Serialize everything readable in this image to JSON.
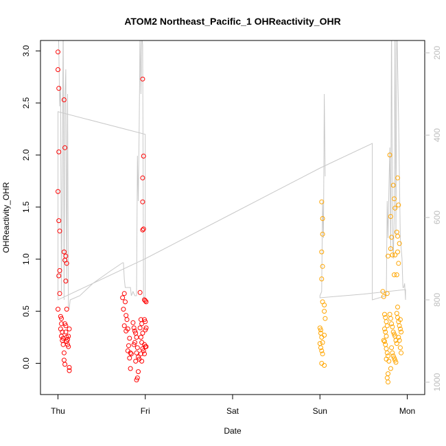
{
  "chart_data": {
    "type": "scatter",
    "title": "ATOM2 Northeast_Pacific_1 OHReactivity_OHR",
    "xlabel": "Date",
    "ylabel": "OHReactivity_OHR",
    "x_ticks": [
      "Thu",
      "Fri",
      "Sat",
      "Sun",
      "Mon"
    ],
    "xlim_days": [
      -0.2,
      4.2
    ],
    "ylim": [
      -0.3,
      3.1
    ],
    "y_ticks": [
      0.0,
      0.5,
      1.0,
      1.5,
      2.0,
      2.5,
      3.0
    ],
    "y_tick_labels": [
      "0.0",
      "0.5",
      "1.0",
      "1.5",
      "2.0",
      "2.5",
      "3.0"
    ],
    "right_axis": {
      "ylim": [
        1030,
        170
      ],
      "ticks": [
        200,
        400,
        600,
        800,
        1000
      ],
      "tick_labels": [
        "200",
        "400",
        "600",
        "800",
        "1000"
      ],
      "reversed": true,
      "color": "#bdbdbd"
    },
    "grid": false,
    "series": [
      {
        "color": "#ff0000",
        "marker": "open-circle",
        "points": [
          [
            0.0,
            2.99
          ],
          [
            0.0,
            2.82
          ],
          [
            0.01,
            2.64
          ],
          [
            0.01,
            2.03
          ],
          [
            0.0,
            1.65
          ],
          [
            0.01,
            1.37
          ],
          [
            0.02,
            1.27
          ],
          [
            0.02,
            0.89
          ],
          [
            0.01,
            0.84
          ],
          [
            0.02,
            0.67
          ],
          [
            0.0,
            0.52
          ],
          [
            0.07,
            2.53
          ],
          [
            0.08,
            2.07
          ],
          [
            0.07,
            1.07
          ],
          [
            0.09,
            1.03
          ],
          [
            0.08,
            0.99
          ],
          [
            0.1,
            0.96
          ],
          [
            0.09,
            0.79
          ],
          [
            0.1,
            0.52
          ],
          [
            0.03,
            0.45
          ],
          [
            0.04,
            0.43
          ],
          [
            0.04,
            0.38
          ],
          [
            0.03,
            0.33
          ],
          [
            0.05,
            0.3
          ],
          [
            0.04,
            0.26
          ],
          [
            0.06,
            0.24
          ],
          [
            0.05,
            0.22
          ],
          [
            0.06,
            0.18
          ],
          [
            0.07,
            0.1
          ],
          [
            0.07,
            0.03
          ],
          [
            0.08,
            -0.01
          ],
          [
            0.08,
            0.38
          ],
          [
            0.09,
            0.36
          ],
          [
            0.09,
            0.3
          ],
          [
            0.1,
            0.25
          ],
          [
            0.11,
            0.23
          ],
          [
            0.11,
            0.18
          ],
          [
            0.12,
            0.16
          ],
          [
            0.13,
            -0.04
          ],
          [
            0.13,
            -0.07
          ],
          [
            0.1,
            0.21
          ],
          [
            0.12,
            0.26
          ],
          [
            0.13,
            0.33
          ],
          [
            0.74,
            0.63
          ],
          [
            0.76,
            0.67
          ],
          [
            0.77,
            0.59
          ],
          [
            0.75,
            0.52
          ],
          [
            0.78,
            0.46
          ],
          [
            0.79,
            0.42
          ],
          [
            0.76,
            0.36
          ],
          [
            0.8,
            0.33
          ],
          [
            0.78,
            0.31
          ],
          [
            0.82,
            0.24
          ],
          [
            0.81,
            0.17
          ],
          [
            0.8,
            0.12
          ],
          [
            0.83,
            0.1
          ],
          [
            0.84,
            0.09
          ],
          [
            0.82,
            0.05
          ],
          [
            0.83,
            -0.05
          ],
          [
            0.86,
            0.39
          ],
          [
            0.87,
            0.34
          ],
          [
            0.88,
            0.31
          ],
          [
            0.89,
            0.29
          ],
          [
            0.9,
            0.25
          ],
          [
            0.88,
            0.2
          ],
          [
            0.87,
            0.18
          ],
          [
            0.91,
            0.15
          ],
          [
            0.9,
            0.1
          ],
          [
            0.92,
            0.06
          ],
          [
            0.93,
            0.04
          ],
          [
            0.89,
            0.02
          ],
          [
            0.92,
            -0.08
          ],
          [
            0.91,
            -0.14
          ],
          [
            0.9,
            -0.16
          ],
          [
            0.94,
            0.68
          ],
          [
            0.95,
            0.42
          ],
          [
            0.96,
            0.38
          ],
          [
            0.94,
            0.34
          ],
          [
            0.97,
            0.29
          ],
          [
            0.95,
            0.25
          ],
          [
            0.96,
            0.2
          ],
          [
            0.97,
            0.14
          ],
          [
            0.95,
            0.09
          ],
          [
            0.96,
            0.02
          ],
          [
            0.97,
            2.73
          ],
          [
            0.98,
            1.99
          ],
          [
            0.97,
            1.78
          ],
          [
            0.97,
            1.55
          ],
          [
            0.97,
            1.28
          ],
          [
            0.98,
            1.29
          ],
          [
            0.99,
            0.61
          ],
          [
            1.0,
            0.6
          ],
          [
            1.01,
            0.59
          ],
          [
            0.99,
            0.42
          ],
          [
            1.0,
            0.4
          ],
          [
            1.01,
            0.34
          ],
          [
            1.0,
            0.32
          ],
          [
            0.99,
            0.18
          ],
          [
            1.0,
            0.16
          ],
          [
            1.01,
            0.16
          ],
          [
            0.98,
            0.12
          ],
          [
            0.99,
            0.09
          ]
        ]
      },
      {
        "color": "#ffa500",
        "marker": "open-circle",
        "points": [
          [
            3.02,
            1.55
          ],
          [
            3.03,
            1.39
          ],
          [
            3.03,
            1.24
          ],
          [
            3.02,
            1.07
          ],
          [
            3.03,
            0.93
          ],
          [
            3.02,
            0.81
          ],
          [
            3.03,
            0.59
          ],
          [
            3.05,
            0.56
          ],
          [
            3.05,
            0.5
          ],
          [
            3.06,
            0.43
          ],
          [
            3.0,
            0.34
          ],
          [
            3.01,
            0.32
          ],
          [
            3.01,
            0.29
          ],
          [
            3.02,
            0.25
          ],
          [
            3.03,
            0.2
          ],
          [
            3.0,
            0.19
          ],
          [
            3.01,
            0.15
          ],
          [
            3.02,
            0.12
          ],
          [
            3.03,
            0.09
          ],
          [
            3.02,
            0.0
          ],
          [
            3.05,
            -0.02
          ],
          [
            3.05,
            0.27
          ],
          [
            3.72,
            0.69
          ],
          [
            3.73,
            0.64
          ],
          [
            3.77,
            0.67
          ],
          [
            3.74,
            0.47
          ],
          [
            3.75,
            0.44
          ],
          [
            3.76,
            0.4
          ],
          [
            3.77,
            0.36
          ],
          [
            3.74,
            0.33
          ],
          [
            3.75,
            0.3
          ],
          [
            3.76,
            0.26
          ],
          [
            3.73,
            0.22
          ],
          [
            3.74,
            0.21
          ],
          [
            3.75,
            0.18
          ],
          [
            3.76,
            0.14
          ],
          [
            3.77,
            0.1
          ],
          [
            3.78,
            0.07
          ],
          [
            3.76,
            0.04
          ],
          [
            3.79,
            0.02
          ],
          [
            3.78,
            -0.1
          ],
          [
            3.77,
            -0.14
          ],
          [
            3.78,
            -0.18
          ],
          [
            3.8,
            2.0
          ],
          [
            3.81,
            1.41
          ],
          [
            3.82,
            1.21
          ],
          [
            3.81,
            1.1
          ],
          [
            3.83,
            1.04
          ],
          [
            3.78,
            1.03
          ],
          [
            3.86,
            1.04
          ],
          [
            3.85,
            0.85
          ],
          [
            3.84,
            1.71
          ],
          [
            3.85,
            1.58
          ],
          [
            3.86,
            1.49
          ],
          [
            3.8,
            0.47
          ],
          [
            3.81,
            0.43
          ],
          [
            3.82,
            0.38
          ],
          [
            3.83,
            0.35
          ],
          [
            3.84,
            0.3
          ],
          [
            3.85,
            0.28
          ],
          [
            3.86,
            0.26
          ],
          [
            3.87,
            0.22
          ],
          [
            3.88,
            0.19
          ],
          [
            3.82,
            0.15
          ],
          [
            3.83,
            0.1
          ],
          [
            3.84,
            0.07
          ],
          [
            3.85,
            0.05
          ],
          [
            3.86,
            0.03
          ],
          [
            3.87,
            0.01
          ],
          [
            3.81,
            -0.05
          ],
          [
            3.89,
            1.78
          ],
          [
            3.9,
            1.52
          ],
          [
            3.88,
            1.26
          ],
          [
            3.89,
            1.22
          ],
          [
            3.91,
            1.15
          ],
          [
            3.89,
            1.07
          ],
          [
            3.9,
            0.96
          ],
          [
            3.88,
            0.85
          ],
          [
            3.88,
            0.48
          ],
          [
            3.89,
            0.44
          ],
          [
            3.9,
            0.4
          ],
          [
            3.91,
            0.36
          ],
          [
            3.92,
            0.33
          ],
          [
            3.93,
            0.3
          ],
          [
            3.9,
            0.25
          ],
          [
            3.91,
            0.22
          ],
          [
            3.92,
            0.15
          ],
          [
            3.93,
            0.1
          ],
          [
            3.89,
            0.54
          ],
          [
            3.92,
            0.42
          ]
        ]
      }
    ],
    "altitude_line": {
      "color": "#c8c8c8",
      "points": [
        [
          0.0,
          110
        ],
        [
          0.01,
          190
        ],
        [
          0.02,
          330
        ],
        [
          0.03,
          280
        ],
        [
          0.04,
          780
        ],
        [
          0.05,
          500
        ],
        [
          0.06,
          120
        ],
        [
          0.07,
          800
        ],
        [
          0.08,
          310
        ],
        [
          0.09,
          240
        ],
        [
          0.1,
          760
        ],
        [
          0.11,
          300
        ],
        [
          0.12,
          820
        ],
        [
          0.13,
          820
        ],
        [
          0.14,
          800
        ],
        [
          0.25,
          790
        ],
        [
          0.4,
          760
        ],
        [
          0.6,
          730
        ],
        [
          0.74,
          710
        ],
        [
          0.75,
          710
        ],
        [
          0.76,
          750
        ],
        [
          0.77,
          770
        ],
        [
          0.8,
          770
        ],
        [
          0.83,
          770
        ],
        [
          0.84,
          790
        ],
        [
          0.86,
          780
        ],
        [
          0.88,
          790
        ],
        [
          0.9,
          790
        ],
        [
          0.91,
          450
        ],
        [
          0.92,
          560
        ],
        [
          0.93,
          390
        ],
        [
          0.94,
          150
        ],
        [
          0.95,
          300
        ],
        [
          0.96,
          160
        ],
        [
          0.97,
          180
        ],
        [
          0.98,
          800
        ],
        [
          1.0,
          790
        ],
        [
          1.0,
          398
        ],
        [
          0.0,
          343
        ],
        [
          0.0,
          800
        ],
        [
          1.0,
          700
        ],
        [
          2.0,
          590
        ],
        [
          3.0,
          480
        ],
        [
          3.6,
          420
        ],
        [
          3.6,
          800
        ],
        [
          3.76,
          790
        ],
        [
          3.77,
          560
        ],
        [
          3.78,
          650
        ],
        [
          3.79,
          530
        ],
        [
          3.8,
          430
        ],
        [
          3.81,
          680
        ],
        [
          3.82,
          100
        ],
        [
          3.83,
          620
        ],
        [
          3.84,
          700
        ],
        [
          3.85,
          600
        ],
        [
          3.86,
          120
        ],
        [
          3.87,
          650
        ],
        [
          3.88,
          120
        ],
        [
          3.9,
          350
        ],
        [
          3.91,
          500
        ],
        [
          3.92,
          650
        ],
        [
          3.94,
          700
        ],
        [
          3.95,
          770
        ],
        [
          3.96,
          770
        ],
        [
          3.97,
          760
        ],
        [
          3.98,
          800
        ],
        [
          3.98,
          775
        ],
        [
          3.5,
          786
        ],
        [
          3.0,
          795
        ],
        [
          3.0,
          790
        ],
        [
          3.02,
          780
        ],
        [
          3.03,
          560
        ],
        [
          3.04,
          650
        ],
        [
          3.05,
          300
        ],
        [
          3.06,
          500
        ]
      ]
    }
  }
}
